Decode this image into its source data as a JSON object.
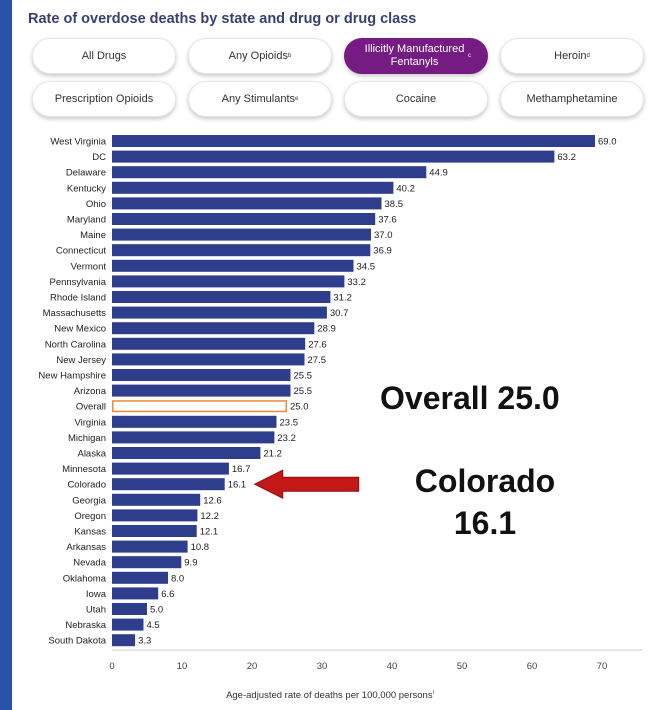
{
  "title": "Rate of overdose deaths by state and drug or drug class",
  "filters": [
    {
      "label": "All Drugs",
      "sup": "",
      "active": false
    },
    {
      "label": "Any Opioids",
      "sup": "b",
      "active": false
    },
    {
      "label": "Illicitly Manufactured Fentanyls",
      "sup": "c",
      "active": true
    },
    {
      "label": "Heroin",
      "sup": "d",
      "active": false
    },
    {
      "label": "Prescription Opioids",
      "sup": "",
      "active": false
    },
    {
      "label": "Any Stimulants",
      "sup": "e",
      "active": false
    },
    {
      "label": "Cocaine",
      "sup": "",
      "active": false
    },
    {
      "label": "Methamphetamine",
      "sup": "",
      "active": false
    }
  ],
  "annotations": {
    "overall_text": "Overall 25.0",
    "colorado_line1": "Colorado",
    "colorado_line2": "16.1"
  },
  "colors": {
    "bar": "#2e3e8c",
    "overall_outline": "#f0883a",
    "arrow": "#c41818",
    "active_filter": "#741c82"
  },
  "chart_data": {
    "type": "bar",
    "orientation": "horizontal",
    "title": "Rate of overdose deaths by state and drug or drug class",
    "xlabel": "Age-adjusted rate of deaths per 100,000 persons",
    "xlabel_sup": "i",
    "ylabel": "",
    "xlim": [
      0,
      75
    ],
    "xticks": [
      0,
      10,
      20,
      30,
      40,
      50,
      60,
      70
    ],
    "grid": false,
    "categories": [
      "West Virginia",
      "DC",
      "Delaware",
      "Kentucky",
      "Ohio",
      "Maryland",
      "Maine",
      "Connecticut",
      "Vermont",
      "Pennsylvania",
      "Rhode Island",
      "Massachusetts",
      "New Mexico",
      "North Carolina",
      "New Jersey",
      "New Hampshire",
      "Arizona",
      "Overall",
      "Virginia",
      "Michigan",
      "Alaska",
      "Minnesota",
      "Colorado",
      "Georgia",
      "Oregon",
      "Kansas",
      "Arkansas",
      "Nevada",
      "Oklahoma",
      "Iowa",
      "Utah",
      "Nebraska",
      "South Dakota"
    ],
    "values": [
      69.0,
      63.2,
      44.9,
      40.2,
      38.5,
      37.6,
      37.0,
      36.9,
      34.5,
      33.2,
      31.2,
      30.7,
      28.9,
      27.6,
      27.5,
      25.5,
      25.5,
      25.0,
      23.5,
      23.2,
      21.2,
      16.7,
      16.1,
      12.6,
      12.2,
      12.1,
      10.8,
      9.9,
      8.0,
      6.6,
      5.0,
      4.5,
      3.3
    ],
    "value_labels": [
      "69.0",
      "63.2",
      "44.9",
      "40.2",
      "38.5",
      "37.6",
      "37.0",
      "36.9",
      "34.5",
      "33.2",
      "31.2",
      "30.7",
      "28.9",
      "27.6",
      "27.5",
      "25.5",
      "25.5",
      "25.0",
      "23.5",
      "23.2",
      "21.2",
      "16.7",
      "16.1",
      "12.6",
      "12.2",
      "12.1",
      "10.8",
      "9.9",
      "8.0",
      "6.6",
      "5.0",
      "4.5",
      "3.3"
    ],
    "highlight_outline": "Overall",
    "arrow_target": "Colorado"
  }
}
